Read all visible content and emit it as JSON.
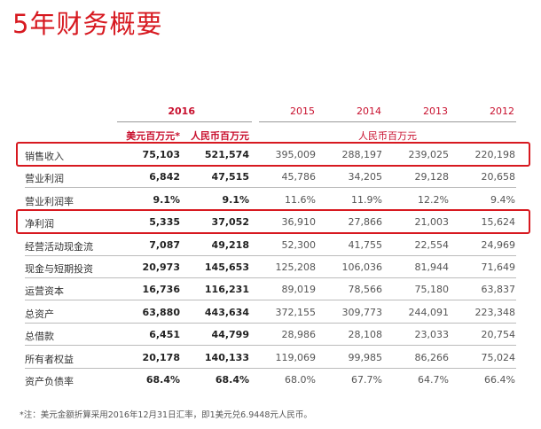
{
  "title": "5年财务概要",
  "header": {
    "years": [
      "2016",
      "2015",
      "2014",
      "2013",
      "2012"
    ],
    "sub_usd": "美元百万元*",
    "sub_rmb": "人民币百万元",
    "sub_rmb_hist": "人民币百万元"
  },
  "rows": [
    {
      "label": "销售收入",
      "usd": "75,103",
      "rmb2016": "521,574",
      "y2015": "395,009",
      "y2014": "288,197",
      "y2013": "239,025",
      "y2012": "220,198"
    },
    {
      "label": "营业利润",
      "usd": "6,842",
      "rmb2016": "47,515",
      "y2015": "45,786",
      "y2014": "34,205",
      "y2013": "29,128",
      "y2012": "20,658"
    },
    {
      "label": "营业利润率",
      "usd": "9.1%",
      "rmb2016": "9.1%",
      "y2015": "11.6%",
      "y2014": "11.9%",
      "y2013": "12.2%",
      "y2012": "9.4%"
    },
    {
      "label": "净利润",
      "usd": "5,335",
      "rmb2016": "37,052",
      "y2015": "36,910",
      "y2014": "27,866",
      "y2013": "21,003",
      "y2012": "15,624"
    },
    {
      "label": "经营活动现金流",
      "usd": "7,087",
      "rmb2016": "49,218",
      "y2015": "52,300",
      "y2014": "41,755",
      "y2013": "22,554",
      "y2012": "24,969"
    },
    {
      "label": "现金与短期投资",
      "usd": "20,973",
      "rmb2016": "145,653",
      "y2015": "125,208",
      "y2014": "106,036",
      "y2013": "81,944",
      "y2012": "71,649"
    },
    {
      "label": "运营资本",
      "usd": "16,736",
      "rmb2016": "116,231",
      "y2015": "89,019",
      "y2014": "78,566",
      "y2013": "75,180",
      "y2012": "63,837"
    },
    {
      "label": "总资产",
      "usd": "63,880",
      "rmb2016": "443,634",
      "y2015": "372,155",
      "y2014": "309,773",
      "y2013": "244,091",
      "y2012": "223,348"
    },
    {
      "label": "总借款",
      "usd": "6,451",
      "rmb2016": "44,799",
      "y2015": "28,986",
      "y2014": "28,108",
      "y2013": "23,033",
      "y2012": "20,754"
    },
    {
      "label": "所有者权益",
      "usd": "20,178",
      "rmb2016": "140,133",
      "y2015": "119,069",
      "y2014": "99,985",
      "y2013": "86,266",
      "y2012": "75,024"
    },
    {
      "label": "资产负债率",
      "usd": "68.4%",
      "rmb2016": "68.4%",
      "y2015": "68.0%",
      "y2014": "67.7%",
      "y2013": "64.7%",
      "y2012": "66.4%"
    }
  ],
  "footnote": "*注：美元金额折算采用2016年12月31日汇率，即1美元兑6.9448元人民币。",
  "colors": {
    "accent": "#d71920"
  }
}
